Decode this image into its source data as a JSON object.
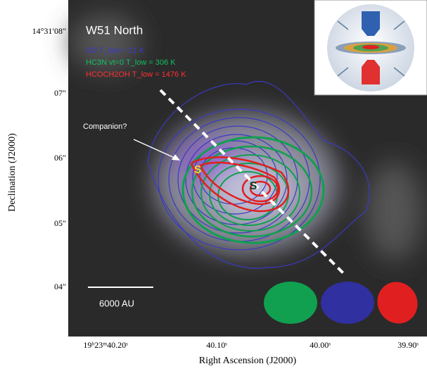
{
  "figure": {
    "title": "W51 North",
    "legend": [
      "SO   T_low = 21 K",
      "HC3N vt=0   T_low = 306 K",
      "HCOCH2OH   T_low = 1476 K"
    ],
    "annotation": "Companion?",
    "scale_bar": "6000 AU",
    "source_labels": [
      "S",
      "S"
    ],
    "x_label": "Right Ascension (J2000)",
    "y_label": "Declination (J2000)",
    "x_tick_labels": [
      "19ʰ23ᵐ40.20ˢ",
      "40.10ˢ",
      "40.00ˢ",
      "39.90ˢ"
    ],
    "y_tick_labels": [
      "14°31′08″",
      "07″",
      "06″",
      "05″",
      "04″"
    ]
  }
}
